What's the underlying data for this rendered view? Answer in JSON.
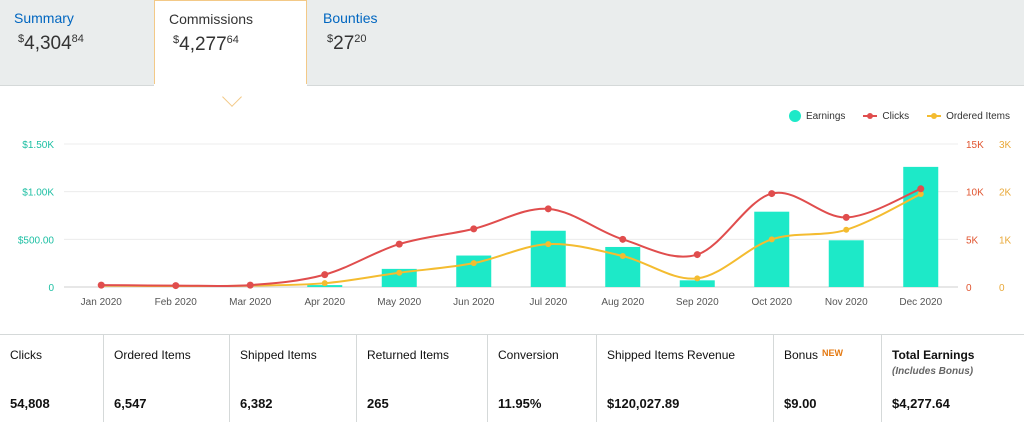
{
  "tabs": [
    {
      "label": "Summary",
      "currency": "$",
      "whole": "4,304",
      "cents": "84",
      "active": false
    },
    {
      "label": "Commissions",
      "currency": "$",
      "whole": "4,277",
      "cents": "64",
      "active": true
    },
    {
      "label": "Bounties",
      "currency": "$",
      "whole": "27",
      "cents": "20",
      "active": false
    }
  ],
  "colors": {
    "earnings": "#1de9c8",
    "clicks": "#e04d4d",
    "ordered": "#f4bc30",
    "left_axis": "#1dbfa3",
    "right_axis_clicks": "#e0542f",
    "right_axis_ordered": "#e9a93a",
    "tab_link": "#0066c0"
  },
  "chart_data": {
    "type": "bar",
    "categories": [
      "Jan 2020",
      "Feb 2020",
      "Mar 2020",
      "Apr 2020",
      "May 2020",
      "Jun 2020",
      "Jul 2020",
      "Aug 2020",
      "Sep 2020",
      "Oct 2020",
      "Nov 2020",
      "Dec 2020"
    ],
    "series": [
      {
        "name": "Earnings",
        "kind": "bar",
        "axis": "left",
        "values": [
          0,
          0,
          0,
          20,
          190,
          330,
          590,
          420,
          70,
          790,
          490,
          1260
        ]
      },
      {
        "name": "Clicks",
        "kind": "line",
        "axis": "right_clicks",
        "values": [
          200,
          150,
          200,
          1300,
          4500,
          6100,
          8200,
          5000,
          3400,
          9800,
          7300,
          10300
        ]
      },
      {
        "name": "Ordered Items",
        "kind": "line",
        "axis": "right_ordered",
        "values": [
          30,
          20,
          30,
          80,
          300,
          500,
          900,
          650,
          180,
          1000,
          1200,
          1950
        ]
      }
    ],
    "left_axis": {
      "ticks": [
        "0",
        "$500.00",
        "$1.00K",
        "$1.50K"
      ],
      "range": [
        0,
        1500
      ]
    },
    "right_axis_clicks": {
      "ticks": [
        "0",
        "5K",
        "10K",
        "15K"
      ],
      "range": [
        0,
        15000
      ]
    },
    "right_axis_ordered": {
      "ticks": [
        "0",
        "1K",
        "2K",
        "3K"
      ],
      "range": [
        0,
        3000
      ]
    },
    "legend": {
      "position": "top-right"
    },
    "grid": true
  },
  "metrics": [
    {
      "label": "Clicks",
      "value": "54,808"
    },
    {
      "label": "Ordered Items",
      "value": "6,547"
    },
    {
      "label": "Shipped Items",
      "value": "6,382"
    },
    {
      "label": "Returned Items",
      "value": "265"
    },
    {
      "label": "Conversion",
      "value": "11.95%"
    },
    {
      "label": "Shipped Items Revenue",
      "value": "$120,027.89"
    },
    {
      "label": "Bonus",
      "badge": "NEW",
      "value": "$9.00"
    },
    {
      "label": "Total Earnings",
      "sublabel": "(Includes Bonus)",
      "value": "$4,277.64"
    }
  ]
}
